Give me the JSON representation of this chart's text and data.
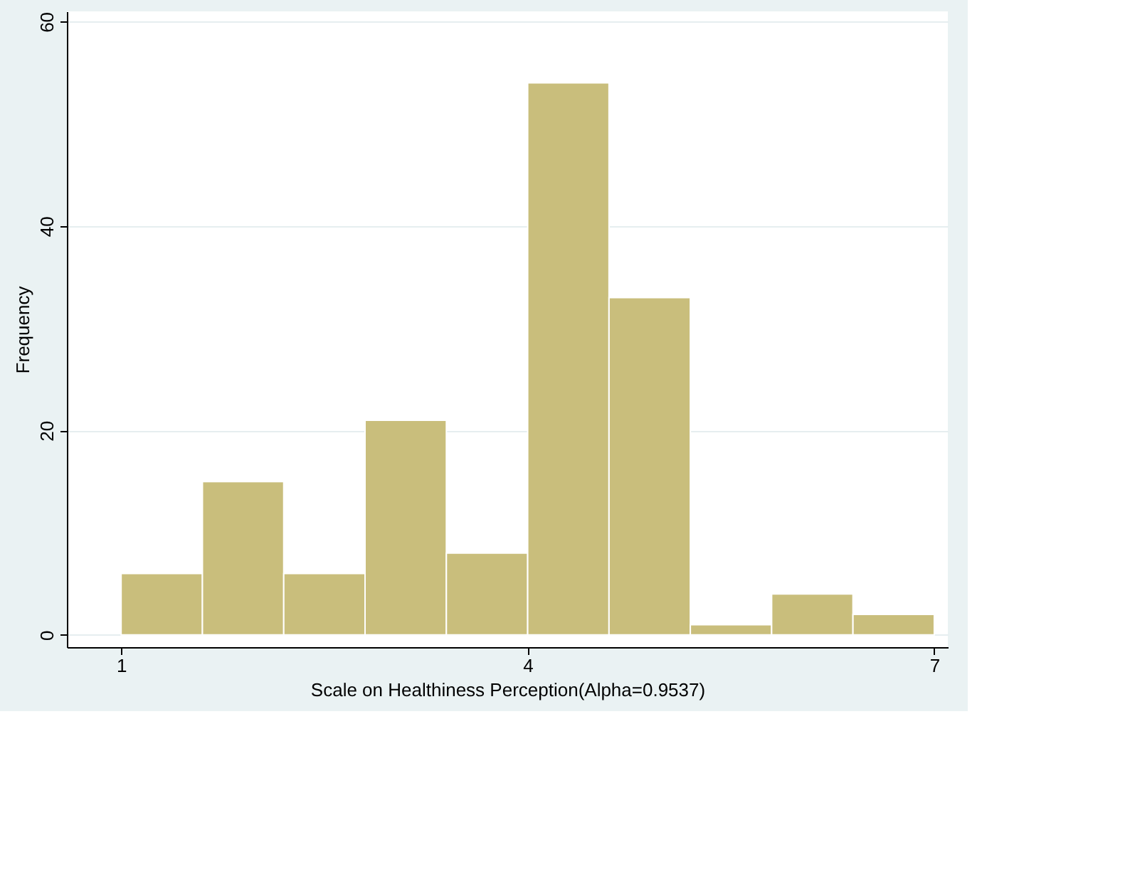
{
  "chart_data": {
    "type": "histogram",
    "xlabel": "Scale on Healthiness Perception(Alpha=0.9537)",
    "ylabel": "Frequency",
    "bins": [
      1,
      1.6,
      2.2,
      2.8,
      3.4,
      4.0,
      4.6,
      5.2,
      5.8,
      6.4,
      7.0
    ],
    "values": [
      6,
      15,
      6,
      21,
      8,
      54,
      33,
      1,
      4,
      2
    ],
    "color": "#c9be7c",
    "xlim": [
      0.6,
      7.1
    ],
    "xticks": [
      1,
      4,
      7
    ],
    "ylim": [
      -1.2,
      61
    ],
    "yticks": [
      0,
      20,
      40,
      60
    ],
    "grid": "y"
  }
}
